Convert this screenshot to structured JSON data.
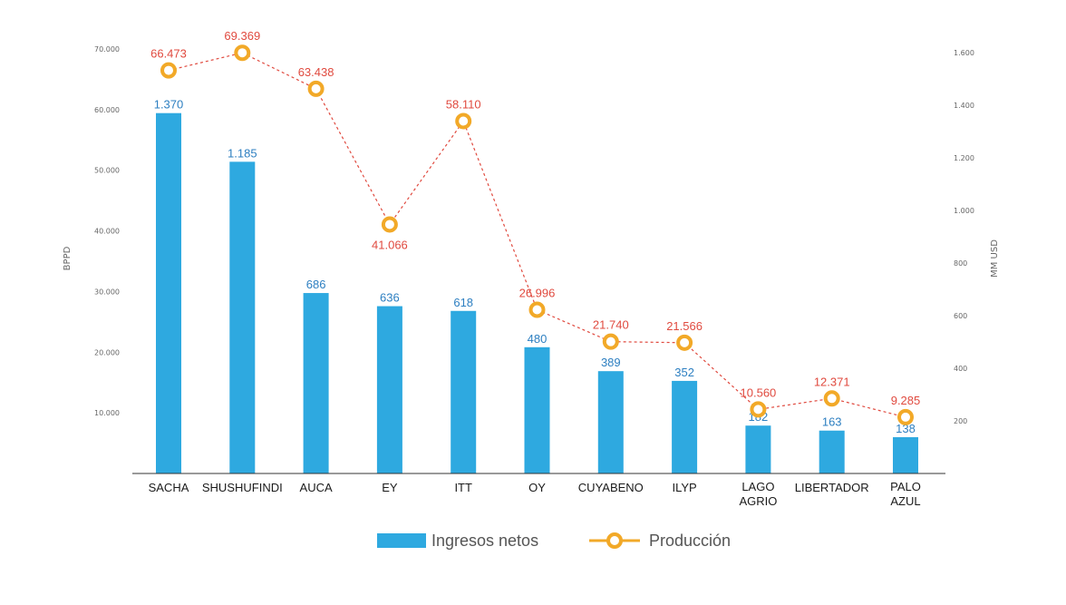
{
  "chart_data": {
    "type": "bar",
    "categories": [
      [
        "SACHA"
      ],
      [
        "SHUSHUFINDI"
      ],
      [
        "AUCA"
      ],
      [
        "EY"
      ],
      [
        "ITT"
      ],
      [
        "OY"
      ],
      [
        "CUYABENO"
      ],
      [
        "ILYP"
      ],
      [
        "LAGO",
        "AGRIO"
      ],
      [
        "LIBERTADOR"
      ],
      [
        "PALO",
        "AZUL"
      ]
    ],
    "series": [
      {
        "name": "Ingresos netos",
        "kind": "bar",
        "axis": "right",
        "values": [
          1370,
          1185,
          686,
          636,
          618,
          480,
          389,
          352,
          182,
          163,
          138
        ],
        "labels": [
          "1.370",
          "1.185",
          "686",
          "636",
          "618",
          "480",
          "389",
          "352",
          "182",
          "163",
          "138"
        ],
        "color": "#2ea9e0"
      },
      {
        "name": "Producción",
        "kind": "line",
        "axis": "left",
        "values": [
          66473,
          69369,
          63438,
          41066,
          58110,
          26996,
          21740,
          21566,
          10560,
          12371,
          9285
        ],
        "labels": [
          "66.473",
          "69.369",
          "63.438",
          "41.066",
          "58.110",
          "26.996",
          "21.740",
          "21.566",
          "10.560",
          "12.371",
          "9.285"
        ],
        "color": "#f2a928",
        "line_color": "#e04a3f"
      }
    ],
    "ylabel": "BPPD",
    "y2label": "MM USD",
    "ylim": [
      0,
      70000
    ],
    "y2lim": [
      0,
      1600
    ],
    "yticks": [
      "10.000",
      "20.000",
      "30.000",
      "40.000",
      "50.000",
      "60.000",
      "70.000"
    ],
    "y2ticks": [
      "200",
      "400",
      "600",
      "800",
      "1.000",
      "1.200",
      "1.400",
      "1.600"
    ],
    "grid": false,
    "legend_position": "bottom"
  }
}
